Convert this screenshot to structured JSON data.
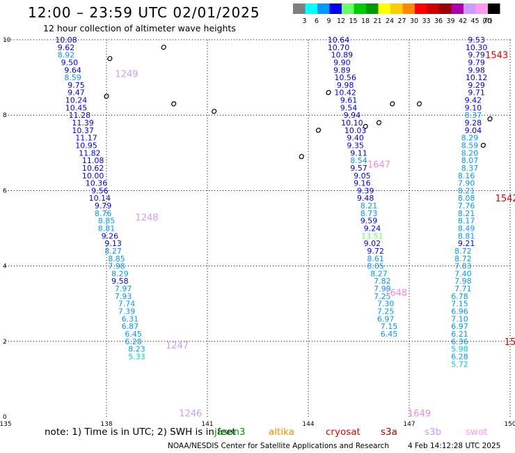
{
  "header": {
    "title": "12:00 – 23:59 UTC 02/01/2025",
    "subtitle": "12 hour collection of altimeter wave heights"
  },
  "legend": {
    "unit": "(ft)",
    "bins": [
      {
        "label": "3",
        "color": "#7f7f7f"
      },
      {
        "label": "6",
        "color": "#00ffff"
      },
      {
        "label": "9",
        "color": "#0099ff"
      },
      {
        "label": "12",
        "color": "#0000ee"
      },
      {
        "label": "15",
        "color": "#66ff66"
      },
      {
        "label": "18",
        "color": "#00cc00"
      },
      {
        "label": "21",
        "color": "#009900"
      },
      {
        "label": "24",
        "color": "#ffff00"
      },
      {
        "label": "27",
        "color": "#ffcc00"
      },
      {
        "label": "30",
        "color": "#ff8800"
      },
      {
        "label": "33",
        "color": "#ff0000"
      },
      {
        "label": "36",
        "color": "#cc0000"
      },
      {
        "label": "39",
        "color": "#990000"
      },
      {
        "label": "42",
        "color": "#aa00aa"
      },
      {
        "label": "45",
        "color": "#cc99ff"
      },
      {
        "label": "70",
        "color": "#ff99ee"
      },
      {
        "label": "",
        "color": "#000000"
      }
    ]
  },
  "map": {
    "lon_range": [
      135,
      150
    ],
    "lat_range": [
      0,
      10
    ],
    "lon_ticks": [
      "135",
      "138",
      "141",
      "144",
      "147",
      "150"
    ],
    "lat_ticks": [
      "0",
      "2",
      "4",
      "6",
      "8",
      "10"
    ],
    "pass_label_colors": {
      "purple": "#c9a0f0",
      "pink": "#f08ad8",
      "red": "#e00000"
    },
    "pass_labels": [
      {
        "text": "1249",
        "lon": 138.6,
        "lat": 9.1,
        "color": "purple"
      },
      {
        "text": "1248",
        "lon": 139.2,
        "lat": 5.3,
        "color": "purple"
      },
      {
        "text": "1247",
        "lon": 140.1,
        "lat": 1.9,
        "color": "purple"
      },
      {
        "text": "1246",
        "lon": 140.5,
        "lat": 0.1,
        "color": "purple"
      },
      {
        "text": "1647",
        "lon": 146.1,
        "lat": 6.7,
        "color": "pink"
      },
      {
        "text": "1648",
        "lon": 146.6,
        "lat": 3.3,
        "color": "pink"
      },
      {
        "text": "1649",
        "lon": 147.3,
        "lat": 0.1,
        "color": "pink"
      },
      {
        "text": "1543",
        "lon": 149.6,
        "lat": 9.6,
        "color": "red"
      },
      {
        "text": "1542",
        "lon": 149.9,
        "lat": 5.8,
        "color": "red"
      },
      {
        "text": "15",
        "lon": 150.0,
        "lat": 2.0,
        "color": "red"
      }
    ],
    "track_west": [
      {
        "lon": 136.8,
        "lat": 10.0,
        "v": "10.08",
        "c": "#0000ee"
      },
      {
        "lon": 136.8,
        "lat": 9.8,
        "v": "9.62",
        "c": "#0000ee"
      },
      {
        "lon": 136.8,
        "lat": 9.6,
        "v": "8.92",
        "c": "#0099ff"
      },
      {
        "lon": 136.9,
        "lat": 9.4,
        "v": "9.50",
        "c": "#0000ee"
      },
      {
        "lon": 137.0,
        "lat": 9.2,
        "v": "9.64",
        "c": "#0000ee"
      },
      {
        "lon": 137.0,
        "lat": 9.0,
        "v": "8.59",
        "c": "#0099ff"
      },
      {
        "lon": 137.1,
        "lat": 8.8,
        "v": "9.75",
        "c": "#0000ee"
      },
      {
        "lon": 137.1,
        "lat": 8.6,
        "v": "9.47",
        "c": "#0000ee"
      },
      {
        "lon": 137.1,
        "lat": 8.4,
        "v": "10.24",
        "c": "#0000ee"
      },
      {
        "lon": 137.1,
        "lat": 8.2,
        "v": "10.45",
        "c": "#0000ee"
      },
      {
        "lon": 137.2,
        "lat": 8.0,
        "v": "11.28",
        "c": "#0000ee"
      },
      {
        "lon": 137.3,
        "lat": 7.8,
        "v": "11.39",
        "c": "#0000ee"
      },
      {
        "lon": 137.3,
        "lat": 7.6,
        "v": "10.37",
        "c": "#0000ee"
      },
      {
        "lon": 137.4,
        "lat": 7.4,
        "v": "11.17",
        "c": "#0000ee"
      },
      {
        "lon": 137.4,
        "lat": 7.2,
        "v": "10.95",
        "c": "#0000ee"
      },
      {
        "lon": 137.5,
        "lat": 7.0,
        "v": "11.82",
        "c": "#0000ee"
      },
      {
        "lon": 137.6,
        "lat": 6.8,
        "v": "11.08",
        "c": "#0000ee"
      },
      {
        "lon": 137.6,
        "lat": 6.6,
        "v": "10.62",
        "c": "#0000ee"
      },
      {
        "lon": 137.6,
        "lat": 6.4,
        "v": "10.00",
        "c": "#0000ee"
      },
      {
        "lon": 137.7,
        "lat": 6.2,
        "v": "10.36",
        "c": "#0000ee"
      },
      {
        "lon": 137.8,
        "lat": 6.0,
        "v": "9.56",
        "c": "#0000ee"
      },
      {
        "lon": 137.8,
        "lat": 5.8,
        "v": "10.14",
        "c": "#0000ee"
      },
      {
        "lon": 137.9,
        "lat": 5.6,
        "v": "9.79",
        "c": "#0000ee"
      },
      {
        "lon": 137.9,
        "lat": 5.4,
        "v": "8.76",
        "c": "#0099ff"
      },
      {
        "lon": 138.0,
        "lat": 5.2,
        "v": "8.85",
        "c": "#0099ff"
      },
      {
        "lon": 138.0,
        "lat": 5.0,
        "v": "8.81",
        "c": "#0099ff"
      },
      {
        "lon": 138.1,
        "lat": 4.8,
        "v": "9.26",
        "c": "#0000ee"
      },
      {
        "lon": 138.2,
        "lat": 4.6,
        "v": "9.13",
        "c": "#0000ee"
      },
      {
        "lon": 138.2,
        "lat": 4.4,
        "v": "8.27",
        "c": "#0099ff"
      },
      {
        "lon": 138.3,
        "lat": 4.2,
        "v": "8.85",
        "c": "#0099ff"
      },
      {
        "lon": 138.3,
        "lat": 4.0,
        "v": "7.98",
        "c": "#0099ff"
      },
      {
        "lon": 138.4,
        "lat": 3.8,
        "v": "8.29",
        "c": "#0099ff"
      },
      {
        "lon": 138.4,
        "lat": 3.6,
        "v": "9.58",
        "c": "#0000ee"
      },
      {
        "lon": 138.5,
        "lat": 3.4,
        "v": "7.97",
        "c": "#0099ff"
      },
      {
        "lon": 138.5,
        "lat": 3.2,
        "v": "7.93",
        "c": "#0099ff"
      },
      {
        "lon": 138.6,
        "lat": 3.0,
        "v": "7.74",
        "c": "#0099ff"
      },
      {
        "lon": 138.6,
        "lat": 2.8,
        "v": "7.39",
        "c": "#0099ff"
      },
      {
        "lon": 138.7,
        "lat": 2.6,
        "v": "6.31",
        "c": "#0099ff"
      },
      {
        "lon": 138.7,
        "lat": 2.4,
        "v": "6.87",
        "c": "#0099ff"
      },
      {
        "lon": 138.8,
        "lat": 2.2,
        "v": "6.45",
        "c": "#0099ff"
      },
      {
        "lon": 138.8,
        "lat": 2.0,
        "v": "6.28",
        "c": "#0099ff"
      },
      {
        "lon": 138.9,
        "lat": 1.8,
        "v": "8.23",
        "c": "#0099ff"
      },
      {
        "lon": 138.9,
        "lat": 1.6,
        "v": "5.33",
        "c": "#00cccc"
      }
    ],
    "track_middle": [
      {
        "lon": 144.9,
        "lat": 10.0,
        "v": "10.64",
        "c": "#0000ee"
      },
      {
        "lon": 144.9,
        "lat": 9.8,
        "v": "10.70",
        "c": "#0000ee"
      },
      {
        "lon": 145.0,
        "lat": 9.6,
        "v": "10.89",
        "c": "#0000ee"
      },
      {
        "lon": 145.0,
        "lat": 9.4,
        "v": "9.90",
        "c": "#0000ee"
      },
      {
        "lon": 145.0,
        "lat": 9.2,
        "v": "9.89",
        "c": "#0000ee"
      },
      {
        "lon": 145.1,
        "lat": 9.0,
        "v": "10.56",
        "c": "#0000ee"
      },
      {
        "lon": 145.1,
        "lat": 8.8,
        "v": "9.98",
        "c": "#0000ee"
      },
      {
        "lon": 145.1,
        "lat": 8.6,
        "v": "10.42",
        "c": "#0000ee"
      },
      {
        "lon": 145.2,
        "lat": 8.4,
        "v": "9.61",
        "c": "#0000ee"
      },
      {
        "lon": 145.2,
        "lat": 8.2,
        "v": "9.54",
        "c": "#0000ee"
      },
      {
        "lon": 145.3,
        "lat": 8.0,
        "v": "9.94",
        "c": "#0000ee"
      },
      {
        "lon": 145.3,
        "lat": 7.8,
        "v": "10.10",
        "c": "#0000ee"
      },
      {
        "lon": 145.4,
        "lat": 7.6,
        "v": "10.03",
        "c": "#0000ee"
      },
      {
        "lon": 145.4,
        "lat": 7.4,
        "v": "9.40",
        "c": "#0000ee"
      },
      {
        "lon": 145.4,
        "lat": 7.2,
        "v": "9.35",
        "c": "#0000ee"
      },
      {
        "lon": 145.5,
        "lat": 7.0,
        "v": "9.11",
        "c": "#0000ee"
      },
      {
        "lon": 145.5,
        "lat": 6.8,
        "v": "8.54",
        "c": "#0099ff"
      },
      {
        "lon": 145.5,
        "lat": 6.6,
        "v": "9.57",
        "c": "#0000ee"
      },
      {
        "lon": 145.6,
        "lat": 6.4,
        "v": "9.05",
        "c": "#0000ee"
      },
      {
        "lon": 145.6,
        "lat": 6.2,
        "v": "9.16",
        "c": "#0000ee"
      },
      {
        "lon": 145.7,
        "lat": 6.0,
        "v": "9.39",
        "c": "#0000ee"
      },
      {
        "lon": 145.7,
        "lat": 5.8,
        "v": "9.48",
        "c": "#0000ee"
      },
      {
        "lon": 145.8,
        "lat": 5.6,
        "v": "8.21",
        "c": "#0099ff"
      },
      {
        "lon": 145.8,
        "lat": 5.4,
        "v": "8.73",
        "c": "#0099ff"
      },
      {
        "lon": 145.8,
        "lat": 5.2,
        "v": "9.59",
        "c": "#0000ee"
      },
      {
        "lon": 145.9,
        "lat": 5.0,
        "v": "9.24",
        "c": "#0000ee"
      },
      {
        "lon": 145.9,
        "lat": 4.8,
        "v": "13.51",
        "c": "#66ff66"
      },
      {
        "lon": 145.9,
        "lat": 4.6,
        "v": "9.02",
        "c": "#0000ee"
      },
      {
        "lon": 146.0,
        "lat": 4.4,
        "v": "9.72",
        "c": "#0000ee"
      },
      {
        "lon": 146.0,
        "lat": 4.2,
        "v": "8.61",
        "c": "#0099ff"
      },
      {
        "lon": 146.0,
        "lat": 4.0,
        "v": "8.05",
        "c": "#0099ff"
      },
      {
        "lon": 146.1,
        "lat": 3.8,
        "v": "8.27",
        "c": "#0099ff"
      },
      {
        "lon": 146.2,
        "lat": 3.6,
        "v": "7.82",
        "c": "#0099ff"
      },
      {
        "lon": 146.2,
        "lat": 3.4,
        "v": "7.99",
        "c": "#0099ff"
      },
      {
        "lon": 146.2,
        "lat": 3.2,
        "v": "7.25",
        "c": "#0099ff"
      },
      {
        "lon": 146.3,
        "lat": 3.0,
        "v": "7.30",
        "c": "#0099ff"
      },
      {
        "lon": 146.3,
        "lat": 2.8,
        "v": "7.25",
        "c": "#0099ff"
      },
      {
        "lon": 146.3,
        "lat": 2.6,
        "v": "6.97",
        "c": "#0099ff"
      },
      {
        "lon": 146.4,
        "lat": 2.4,
        "v": "7.15",
        "c": "#0099ff"
      },
      {
        "lon": 146.4,
        "lat": 2.2,
        "v": "6.45",
        "c": "#0099ff"
      }
    ],
    "track_east": [
      {
        "lon": 149.0,
        "lat": 10.0,
        "v": "9.53",
        "c": "#0000ee"
      },
      {
        "lon": 149.0,
        "lat": 9.8,
        "v": "10.30",
        "c": "#0000ee"
      },
      {
        "lon": 149.0,
        "lat": 9.6,
        "v": "9.79",
        "c": "#0000ee"
      },
      {
        "lon": 149.0,
        "lat": 9.4,
        "v": "9.79",
        "c": "#0000ee"
      },
      {
        "lon": 149.0,
        "lat": 9.2,
        "v": "9.98",
        "c": "#0000ee"
      },
      {
        "lon": 149.0,
        "lat": 9.0,
        "v": "10.12",
        "c": "#0000ee"
      },
      {
        "lon": 149.0,
        "lat": 8.8,
        "v": "9.29",
        "c": "#0000ee"
      },
      {
        "lon": 149.0,
        "lat": 8.6,
        "v": "9.71",
        "c": "#0000ee"
      },
      {
        "lon": 148.9,
        "lat": 8.4,
        "v": "9.42",
        "c": "#0000ee"
      },
      {
        "lon": 148.9,
        "lat": 8.2,
        "v": "9.10",
        "c": "#0000ee"
      },
      {
        "lon": 148.9,
        "lat": 8.0,
        "v": "8.37",
        "c": "#0099ff"
      },
      {
        "lon": 148.9,
        "lat": 7.8,
        "v": "9.28",
        "c": "#0000ee"
      },
      {
        "lon": 148.9,
        "lat": 7.6,
        "v": "9.04",
        "c": "#0000ee"
      },
      {
        "lon": 148.8,
        "lat": 7.4,
        "v": "8.29",
        "c": "#0099ff"
      },
      {
        "lon": 148.8,
        "lat": 7.2,
        "v": "8.59",
        "c": "#0099ff"
      },
      {
        "lon": 148.8,
        "lat": 7.0,
        "v": "8.20",
        "c": "#0099ff"
      },
      {
        "lon": 148.8,
        "lat": 6.8,
        "v": "8.07",
        "c": "#0099ff"
      },
      {
        "lon": 148.8,
        "lat": 6.6,
        "v": "8.37",
        "c": "#0099ff"
      },
      {
        "lon": 148.7,
        "lat": 6.4,
        "v": "8.16",
        "c": "#0099ff"
      },
      {
        "lon": 148.7,
        "lat": 6.2,
        "v": "7.90",
        "c": "#0099ff"
      },
      {
        "lon": 148.7,
        "lat": 6.0,
        "v": "8.21",
        "c": "#0099ff"
      },
      {
        "lon": 148.7,
        "lat": 5.8,
        "v": "8.08",
        "c": "#0099ff"
      },
      {
        "lon": 148.7,
        "lat": 5.6,
        "v": "7.76",
        "c": "#0099ff"
      },
      {
        "lon": 148.7,
        "lat": 5.4,
        "v": "8.21",
        "c": "#0099ff"
      },
      {
        "lon": 148.7,
        "lat": 5.2,
        "v": "8.17",
        "c": "#0099ff"
      },
      {
        "lon": 148.7,
        "lat": 5.0,
        "v": "8.49",
        "c": "#0099ff"
      },
      {
        "lon": 148.7,
        "lat": 4.8,
        "v": "8.81",
        "c": "#0099ff"
      },
      {
        "lon": 148.7,
        "lat": 4.6,
        "v": "9.21",
        "c": "#0000ee"
      },
      {
        "lon": 148.6,
        "lat": 4.4,
        "v": "8.72",
        "c": "#0099ff"
      },
      {
        "lon": 148.6,
        "lat": 4.2,
        "v": "8.72",
        "c": "#0099ff"
      },
      {
        "lon": 148.6,
        "lat": 4.0,
        "v": "7.83",
        "c": "#0099ff"
      },
      {
        "lon": 148.6,
        "lat": 3.8,
        "v": "7.40",
        "c": "#0099ff"
      },
      {
        "lon": 148.6,
        "lat": 3.6,
        "v": "7.98",
        "c": "#0099ff"
      },
      {
        "lon": 148.6,
        "lat": 3.4,
        "v": "7.71",
        "c": "#0099ff"
      },
      {
        "lon": 148.5,
        "lat": 3.2,
        "v": "6.78",
        "c": "#0099ff"
      },
      {
        "lon": 148.5,
        "lat": 3.0,
        "v": "7.15",
        "c": "#0099ff"
      },
      {
        "lon": 148.5,
        "lat": 2.8,
        "v": "6.96",
        "c": "#0099ff"
      },
      {
        "lon": 148.5,
        "lat": 2.6,
        "v": "7.10",
        "c": "#0099ff"
      },
      {
        "lon": 148.5,
        "lat": 2.4,
        "v": "6.97",
        "c": "#0099ff"
      },
      {
        "lon": 148.5,
        "lat": 2.2,
        "v": "6.21",
        "c": "#0099ff"
      },
      {
        "lon": 148.5,
        "lat": 2.0,
        "v": "6.36",
        "c": "#0099ff"
      },
      {
        "lon": 148.5,
        "lat": 1.8,
        "v": "5.98",
        "c": "#00cccc"
      },
      {
        "lon": 148.5,
        "lat": 1.6,
        "v": "6.28",
        "c": "#0099ff"
      },
      {
        "lon": 148.5,
        "lat": 1.4,
        "v": "5.72",
        "c": "#00cccc"
      }
    ],
    "islands": [
      {
        "lon": 138.1,
        "lat": 9.5
      },
      {
        "lon": 138.0,
        "lat": 8.5
      },
      {
        "lon": 139.7,
        "lat": 9.8
      },
      {
        "lon": 140.0,
        "lat": 8.3
      },
      {
        "lon": 141.2,
        "lat": 8.1
      },
      {
        "lon": 144.3,
        "lat": 7.6
      },
      {
        "lon": 144.6,
        "lat": 8.6
      },
      {
        "lon": 143.8,
        "lat": 6.9
      },
      {
        "lon": 145.7,
        "lat": 7.7
      },
      {
        "lon": 146.1,
        "lat": 7.8
      },
      {
        "lon": 146.5,
        "lat": 8.3
      },
      {
        "lon": 147.3,
        "lat": 8.3
      },
      {
        "lon": 149.4,
        "lat": 7.9
      },
      {
        "lon": 149.2,
        "lat": 7.2
      }
    ]
  },
  "footer": {
    "note": "note: 1) Time is in UTC; 2) SWH is in feet",
    "missions": [
      {
        "label": "jason3",
        "color": "#009900",
        "left": 308
      },
      {
        "label": "altika",
        "color": "#ff8800",
        "left": 386
      },
      {
        "label": "cryosat",
        "color": "#ee0000",
        "left": 468
      },
      {
        "label": "s3a",
        "color": "#aa0000",
        "left": 547
      },
      {
        "label": "s3b",
        "color": "#cc99ff",
        "left": 610
      },
      {
        "label": "swot",
        "color": "#ff99ee",
        "left": 669
      }
    ],
    "credit": "NOAA/NESDIS Center for Satellite Applications and Research",
    "timestamp": "4 Feb 14:12:28 UTC 2025"
  }
}
